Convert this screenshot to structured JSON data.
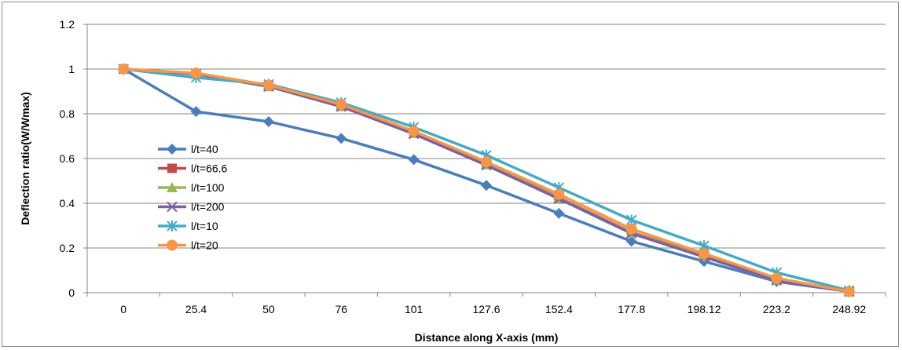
{
  "chart_data": {
    "type": "line",
    "categories": [
      "0",
      "25.4",
      "50",
      "76",
      "101",
      "127.6",
      "152.4",
      "177.8",
      "198.12",
      "223.2",
      "248.92"
    ],
    "xlabel": "Distance  along X-axis (mm)",
    "ylabel": "Deflection ratio(W/Wmax)",
    "ylim": [
      0,
      1.2
    ],
    "yticks": [
      "0",
      "0.2",
      "0.4",
      "0.6",
      "0.8",
      "1",
      "1.2"
    ],
    "grid": "horizontal",
    "legend_position": "left-middle",
    "series": [
      {
        "name": "l/t=40",
        "color": "#4a7ebb",
        "marker": "diamond",
        "values": [
          1.0,
          0.81,
          0.765,
          0.69,
          0.595,
          0.48,
          0.355,
          0.23,
          0.14,
          0.05,
          0.005
        ]
      },
      {
        "name": "l/t=66.6",
        "color": "#be4b48",
        "marker": "square",
        "values": [
          1.0,
          0.98,
          0.925,
          0.835,
          0.715,
          0.575,
          0.425,
          0.27,
          0.165,
          0.06,
          0.005
        ]
      },
      {
        "name": "l/t=100",
        "color": "#98b954",
        "marker": "triangle",
        "values": [
          1.0,
          0.978,
          0.922,
          0.833,
          0.713,
          0.573,
          0.423,
          0.268,
          0.163,
          0.058,
          0.005
        ]
      },
      {
        "name": "l/t=200",
        "color": "#7d60a0",
        "marker": "x",
        "values": [
          1.0,
          0.978,
          0.922,
          0.832,
          0.71,
          0.57,
          0.42,
          0.265,
          0.16,
          0.055,
          0.005
        ]
      },
      {
        "name": "l/t=10",
        "color": "#46aac5",
        "marker": "star",
        "values": [
          1.0,
          0.962,
          0.932,
          0.85,
          0.74,
          0.615,
          0.47,
          0.325,
          0.21,
          0.09,
          0.01
        ]
      },
      {
        "name": "l/t=20",
        "color": "#f79646",
        "marker": "circle",
        "values": [
          1.0,
          0.982,
          0.928,
          0.842,
          0.722,
          0.585,
          0.44,
          0.285,
          0.175,
          0.065,
          0.005
        ]
      }
    ]
  }
}
